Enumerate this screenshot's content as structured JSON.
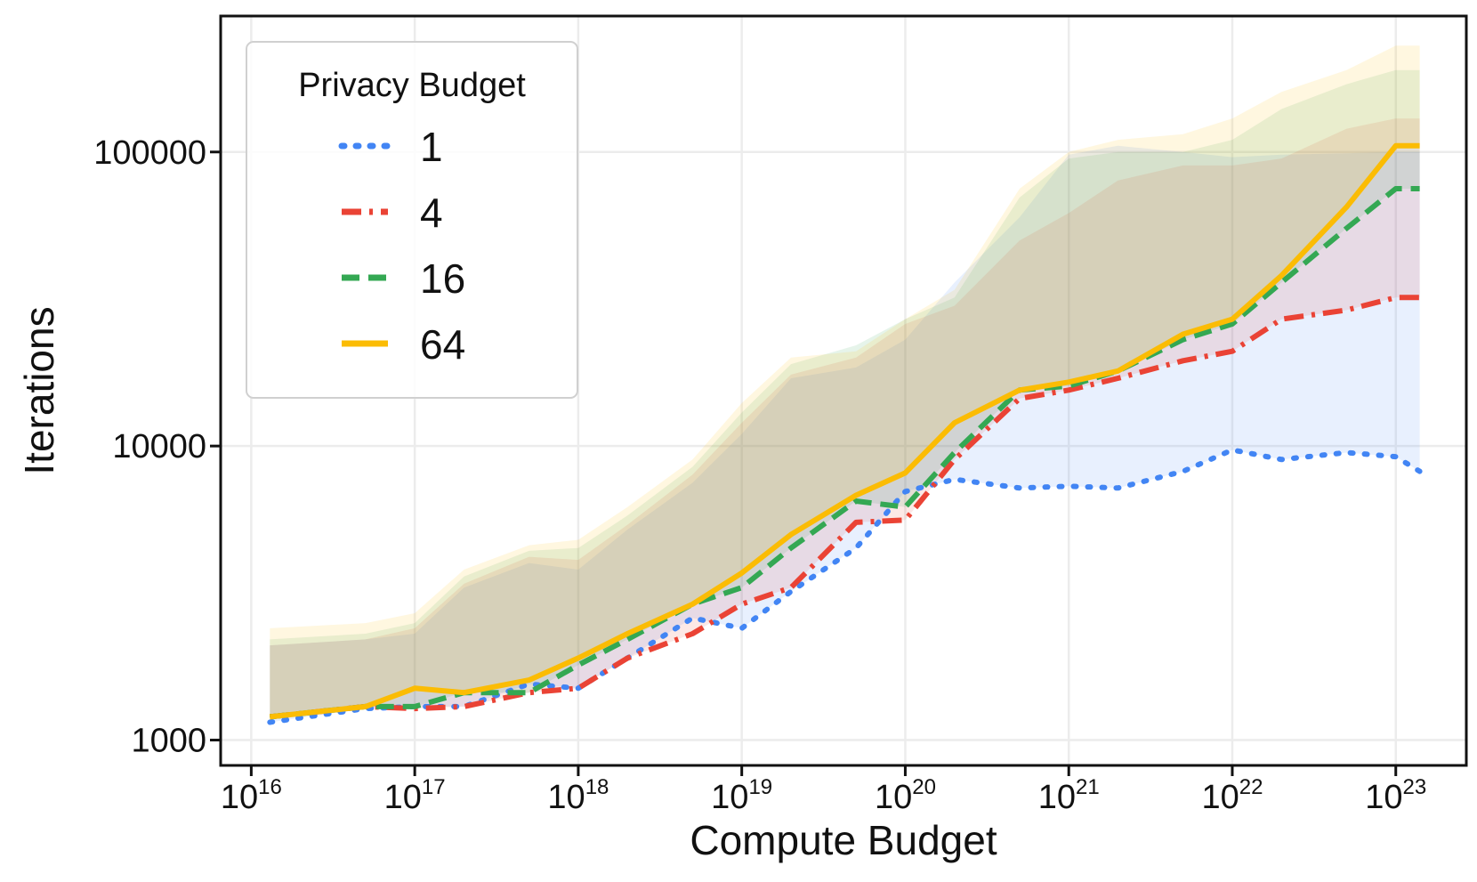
{
  "chart_data": {
    "type": "line",
    "xlabel": "Compute Budget",
    "ylabel": "Iterations",
    "x_scale": "log",
    "y_scale": "log",
    "xlim": [
      6500000000000000.0,
      2.7e+23
    ],
    "ylim": [
      820,
      290000
    ],
    "x_ticks": [
      {
        "value": 1e+16,
        "base": "10",
        "exp": "16"
      },
      {
        "value": 1e+17,
        "base": "10",
        "exp": "17"
      },
      {
        "value": 1e+18,
        "base": "10",
        "exp": "18"
      },
      {
        "value": 1e+19,
        "base": "10",
        "exp": "19"
      },
      {
        "value": 1e+20,
        "base": "10",
        "exp": "20"
      },
      {
        "value": 1e+21,
        "base": "10",
        "exp": "21"
      },
      {
        "value": 1e+22,
        "base": "10",
        "exp": "22"
      },
      {
        "value": 1e+23,
        "base": "10",
        "exp": "23"
      }
    ],
    "y_ticks": [
      {
        "value": 1000,
        "label": "1000"
      },
      {
        "value": 10000,
        "label": "10000"
      },
      {
        "value": 100000,
        "label": "100000"
      }
    ],
    "grid": true,
    "legend": {
      "title": "Privacy Budget",
      "placement": "top-left"
    },
    "x": [
      1.3e+16,
      5e+16,
      1e+17,
      2e+17,
      5e+17,
      1e+18,
      2e+18,
      5e+18,
      1e+19,
      2e+19,
      5e+19,
      1e+20,
      2e+20,
      5e+20,
      1e+21,
      2e+21,
      5e+21,
      1e+22,
      2e+22,
      5e+22,
      1e+23,
      1.4e+23
    ],
    "series": [
      {
        "name": "1",
        "color": "#4285F4",
        "dash": "dot",
        "values": [
          1150,
          1280,
          1300,
          1300,
          1550,
          1500,
          1900,
          2600,
          2400,
          3200,
          4500,
          7000,
          7700,
          7200,
          7300,
          7200,
          8200,
          9700,
          9000,
          9500,
          9200,
          8200
        ],
        "band_low": [
          1150,
          1280,
          1300,
          1300,
          1550,
          1500,
          1900,
          2600,
          2400,
          3200,
          4500,
          7000,
          7700,
          7200,
          7300,
          7200,
          8200,
          9700,
          9000,
          9500,
          9200,
          8200
        ],
        "band_high": [
          2100,
          2200,
          2300,
          3300,
          4000,
          3800,
          5200,
          7500,
          11000,
          17000,
          18500,
          23000,
          36000,
          60000,
          98000,
          105000,
          100000,
          96000,
          98000,
          99000,
          100000,
          100000
        ]
      },
      {
        "name": "4",
        "color": "#EA4335",
        "dash": "dashdot",
        "values": [
          1200,
          1300,
          1280,
          1300,
          1450,
          1500,
          1900,
          2300,
          2900,
          3300,
          5500,
          5600,
          9000,
          14500,
          15500,
          17000,
          19500,
          21000,
          27000,
          29000,
          32000,
          32000
        ],
        "band_low": [
          1200,
          1300,
          1280,
          1300,
          1450,
          1500,
          1900,
          2300,
          2900,
          3300,
          5500,
          5600,
          9000,
          14500,
          15500,
          17000,
          19500,
          21000,
          27000,
          29000,
          32000,
          32000
        ],
        "band_high": [
          2100,
          2200,
          2400,
          3400,
          4200,
          4100,
          5400,
          8000,
          12000,
          17500,
          20000,
          26000,
          30000,
          50000,
          62000,
          80000,
          90000,
          90000,
          95000,
          120000,
          130000,
          130000
        ]
      },
      {
        "name": "16",
        "color": "#34A853",
        "dash": "dash",
        "values": [
          1200,
          1300,
          1300,
          1450,
          1450,
          1800,
          2200,
          2900,
          3300,
          4500,
          6500,
          6200,
          9500,
          15500,
          16000,
          18000,
          23000,
          26000,
          36000,
          55000,
          75000,
          75000
        ],
        "band_low": [
          1200,
          1300,
          1300,
          1450,
          1450,
          1800,
          2200,
          2900,
          3300,
          4500,
          6500,
          6200,
          9500,
          15500,
          16000,
          18000,
          23000,
          26000,
          36000,
          55000,
          75000,
          75000
        ],
        "band_high": [
          2200,
          2300,
          2500,
          3600,
          4400,
          4500,
          5800,
          8500,
          13000,
          19000,
          22000,
          27000,
          32000,
          70000,
          95000,
          100000,
          100000,
          110000,
          140000,
          170000,
          190000,
          190000
        ]
      },
      {
        "name": "64",
        "color": "#FBBC04",
        "dash": "solid",
        "values": [
          1200,
          1300,
          1500,
          1450,
          1600,
          1900,
          2300,
          2900,
          3700,
          5000,
          6800,
          8100,
          12000,
          15500,
          16500,
          18000,
          24000,
          27000,
          38000,
          65000,
          105000,
          105000
        ],
        "band_low": [
          1200,
          1300,
          1500,
          1450,
          1600,
          1900,
          2300,
          2900,
          3700,
          5000,
          6800,
          8100,
          12000,
          15500,
          16500,
          18000,
          24000,
          27000,
          38000,
          65000,
          105000,
          105000
        ],
        "band_high": [
          2400,
          2500,
          2700,
          3800,
          4600,
          4800,
          6200,
          9000,
          14000,
          20000,
          21000,
          27000,
          34000,
          75000,
          100000,
          110000,
          115000,
          130000,
          160000,
          190000,
          230000,
          230000
        ]
      }
    ]
  }
}
